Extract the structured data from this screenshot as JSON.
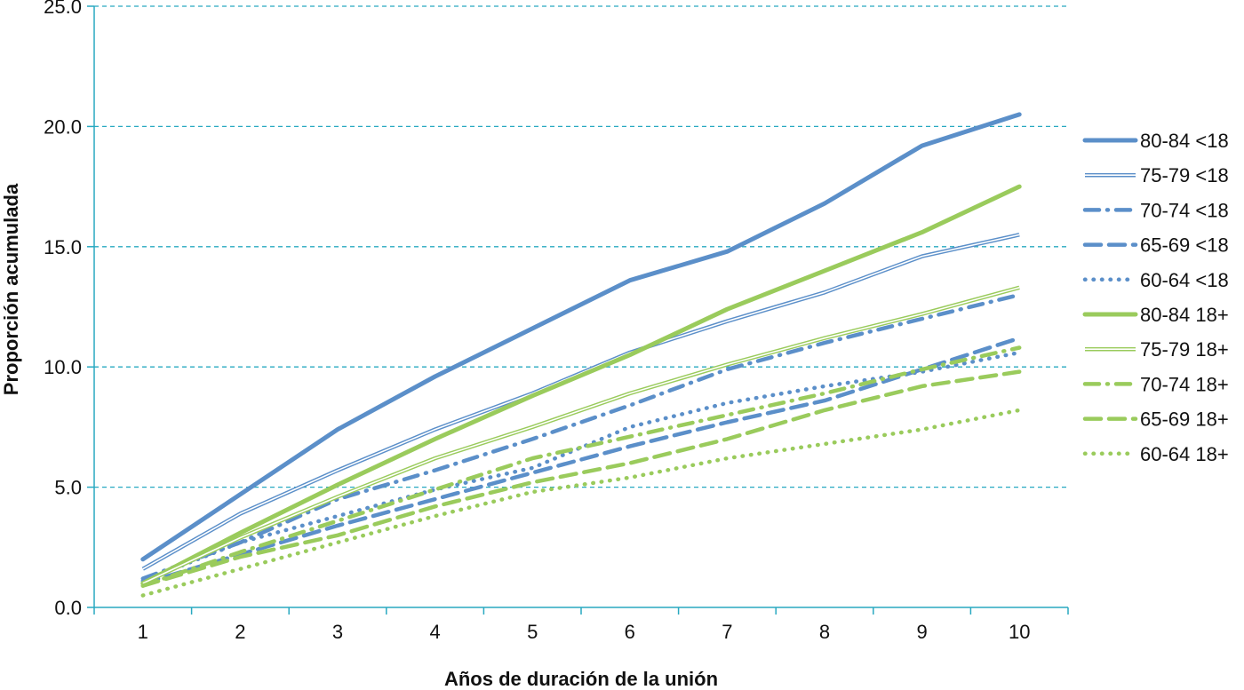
{
  "chart_data": {
    "type": "line",
    "title": "",
    "xlabel": "Años de duración de la unión",
    "ylabel": "Proporción acumulada",
    "x": [
      1,
      2,
      3,
      4,
      5,
      6,
      7,
      8,
      9,
      10
    ],
    "x_tick_labels": [
      "1",
      "2",
      "3",
      "4",
      "5",
      "6",
      "7",
      "8",
      "9",
      "10"
    ],
    "ylim": [
      0,
      25
    ],
    "y_ticks": [
      0,
      5,
      10,
      15,
      20,
      25
    ],
    "y_tick_labels": [
      "0.0",
      "5.0",
      "10.0",
      "15.0",
      "20.0",
      "25.0"
    ],
    "grid": "horizontal dashed",
    "legend_position": "right",
    "colors": {
      "blue": "#5b8fc9",
      "green": "#9acb5c",
      "grid": "#29a9c1",
      "axis": "#29a9c1"
    },
    "series": [
      {
        "name": "80-84 <18",
        "color": "#5b8fc9",
        "style": "solid-thick",
        "values": [
          2.0,
          4.7,
          7.4,
          9.6,
          11.6,
          13.6,
          14.8,
          16.8,
          19.2,
          20.5
        ]
      },
      {
        "name": "75-79 <18",
        "color": "#5b8fc9",
        "style": "double",
        "values": [
          1.6,
          3.9,
          5.7,
          7.4,
          8.9,
          10.6,
          11.9,
          13.1,
          14.6,
          15.5
        ]
      },
      {
        "name": "70-74 <18",
        "color": "#5b8fc9",
        "style": "dash-dot",
        "values": [
          1.2,
          2.7,
          4.5,
          5.7,
          7.0,
          8.4,
          9.9,
          11.0,
          12.0,
          13.0
        ]
      },
      {
        "name": "65-69 <18",
        "color": "#5b8fc9",
        "style": "dash",
        "values": [
          1.0,
          2.2,
          3.4,
          4.5,
          5.6,
          6.7,
          7.7,
          8.6,
          9.9,
          11.2
        ]
      },
      {
        "name": "60-64 <18",
        "color": "#5b8fc9",
        "style": "dot",
        "values": [
          1.1,
          2.7,
          3.8,
          4.9,
          5.8,
          7.5,
          8.5,
          9.2,
          9.8,
          10.6
        ]
      },
      {
        "name": "80-84 18+",
        "color": "#9acb5c",
        "style": "solid-thick",
        "values": [
          1.0,
          3.1,
          5.1,
          7.0,
          8.8,
          10.5,
          12.4,
          14.0,
          15.6,
          17.5
        ]
      },
      {
        "name": "75-79 18+",
        "color": "#9acb5c",
        "style": "double",
        "values": [
          1.0,
          2.9,
          4.6,
          6.2,
          7.5,
          8.9,
          10.1,
          11.2,
          12.2,
          13.3
        ]
      },
      {
        "name": "70-74 18+",
        "color": "#9acb5c",
        "style": "dash-dot",
        "values": [
          0.9,
          2.3,
          3.6,
          4.9,
          6.2,
          7.1,
          8.0,
          8.9,
          9.9,
          10.8
        ]
      },
      {
        "name": "65-69 18+",
        "color": "#9acb5c",
        "style": "dash",
        "values": [
          0.9,
          2.1,
          3.0,
          4.2,
          5.2,
          6.0,
          7.0,
          8.2,
          9.2,
          9.8
        ]
      },
      {
        "name": "60-64 18+",
        "color": "#9acb5c",
        "style": "dot",
        "values": [
          0.5,
          1.6,
          2.7,
          3.8,
          4.8,
          5.4,
          6.2,
          6.8,
          7.4,
          8.2
        ]
      }
    ]
  }
}
